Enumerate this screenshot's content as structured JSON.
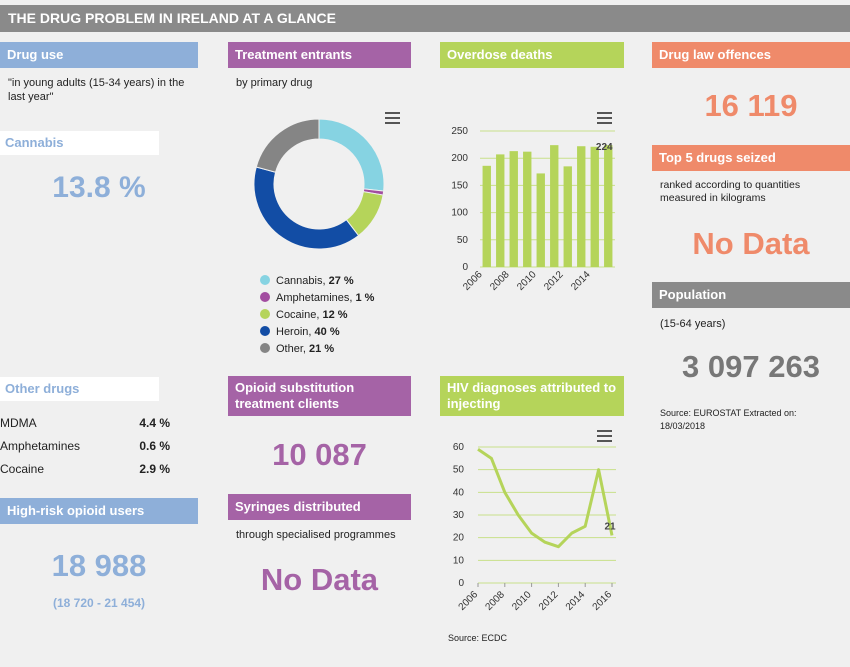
{
  "title": "THE DRUG PROBLEM IN IRELAND AT A GLANCE",
  "colors": {
    "blue": "#8eafd9",
    "purple": "#a563a6",
    "green": "#b5d45a",
    "orange": "#ef8a6a",
    "grey": "#8a8a8a"
  },
  "drug_use": {
    "header": "Drug use",
    "desc": "\"in young adults (15-34 years) in the last year\"",
    "cannabis_label": "Cannabis",
    "cannabis_value": "13.8 %",
    "other_header": "Other drugs",
    "others": [
      {
        "name": "MDMA",
        "value": "4.4 %"
      },
      {
        "name": "Amphetamines",
        "value": "0.6 %"
      },
      {
        "name": "Cocaine",
        "value": "2.9 %"
      }
    ]
  },
  "high_risk": {
    "header": "High-risk opioid users",
    "value": "18 988",
    "range": "(18 720 - 21 454)"
  },
  "treatment": {
    "header": "Treatment entrants",
    "subtitle": "by primary drug"
  },
  "opioid_sub": {
    "header": "Opioid substitution treatment clients",
    "value": "10 087"
  },
  "syringes": {
    "header": "Syringes distributed",
    "subtitle": "through specialised programmes",
    "value": "No Data"
  },
  "overdose": {
    "header": "Overdose deaths"
  },
  "hiv": {
    "header": "HIV diagnoses attributed to injecting",
    "source": "Source: ECDC"
  },
  "drug_law": {
    "header": "Drug law offences",
    "value": "16 119"
  },
  "seized": {
    "header": "Top 5 drugs seized",
    "subtitle": "ranked according to quantities measured in kilograms",
    "value": "No Data"
  },
  "population": {
    "header": "Population",
    "subtitle": "(15-64 years)",
    "value": "3 097 263",
    "source": "Source: EUROSTAT Extracted on: 18/03/2018"
  },
  "chart_data": [
    {
      "type": "pie",
      "title": "Treatment entrants",
      "subtitle": "by primary drug",
      "slices": [
        {
          "name": "Cannabis",
          "value": 27,
          "label": "27 %",
          "color": "#86d3e2"
        },
        {
          "name": "Amphetamines",
          "value": 1,
          "label": "1 %",
          "color": "#a24da0"
        },
        {
          "name": "Cocaine",
          "value": 12,
          "label": "12 %",
          "color": "#b5d45a"
        },
        {
          "name": "Heroin",
          "value": 40,
          "label": "40 %",
          "color": "#124da5"
        },
        {
          "name": "Other",
          "value": 21,
          "label": "21 %",
          "color": "#858585"
        }
      ],
      "legend": "bottom"
    },
    {
      "type": "bar",
      "title": "Overdose deaths",
      "categories": [
        2006,
        2007,
        2008,
        2009,
        2010,
        2011,
        2012,
        2013,
        2014,
        2015
      ],
      "values": [
        186,
        207,
        213,
        212,
        172,
        224,
        185,
        222,
        221,
        224
      ],
      "x_tick_labels": [
        "2006",
        "2008",
        "2010",
        "2012",
        "2014"
      ],
      "y_ticks": [
        0,
        50,
        100,
        150,
        200,
        250
      ],
      "ylim": [
        0,
        250
      ],
      "last_label": "224",
      "grid": true
    },
    {
      "type": "line",
      "title": "HIV diagnoses attributed to injecting",
      "x": [
        2006,
        2007,
        2008,
        2009,
        2010,
        2011,
        2012,
        2013,
        2014,
        2015,
        2016
      ],
      "values": [
        59,
        55,
        40,
        30,
        22,
        18,
        16,
        22,
        25,
        50,
        21
      ],
      "x_tick_labels": [
        "2006",
        "2008",
        "2010",
        "2012",
        "2014",
        "2016"
      ],
      "y_ticks": [
        0,
        10,
        20,
        30,
        40,
        50,
        60
      ],
      "ylim": [
        0,
        60
      ],
      "last_label": "21",
      "grid": true
    }
  ]
}
